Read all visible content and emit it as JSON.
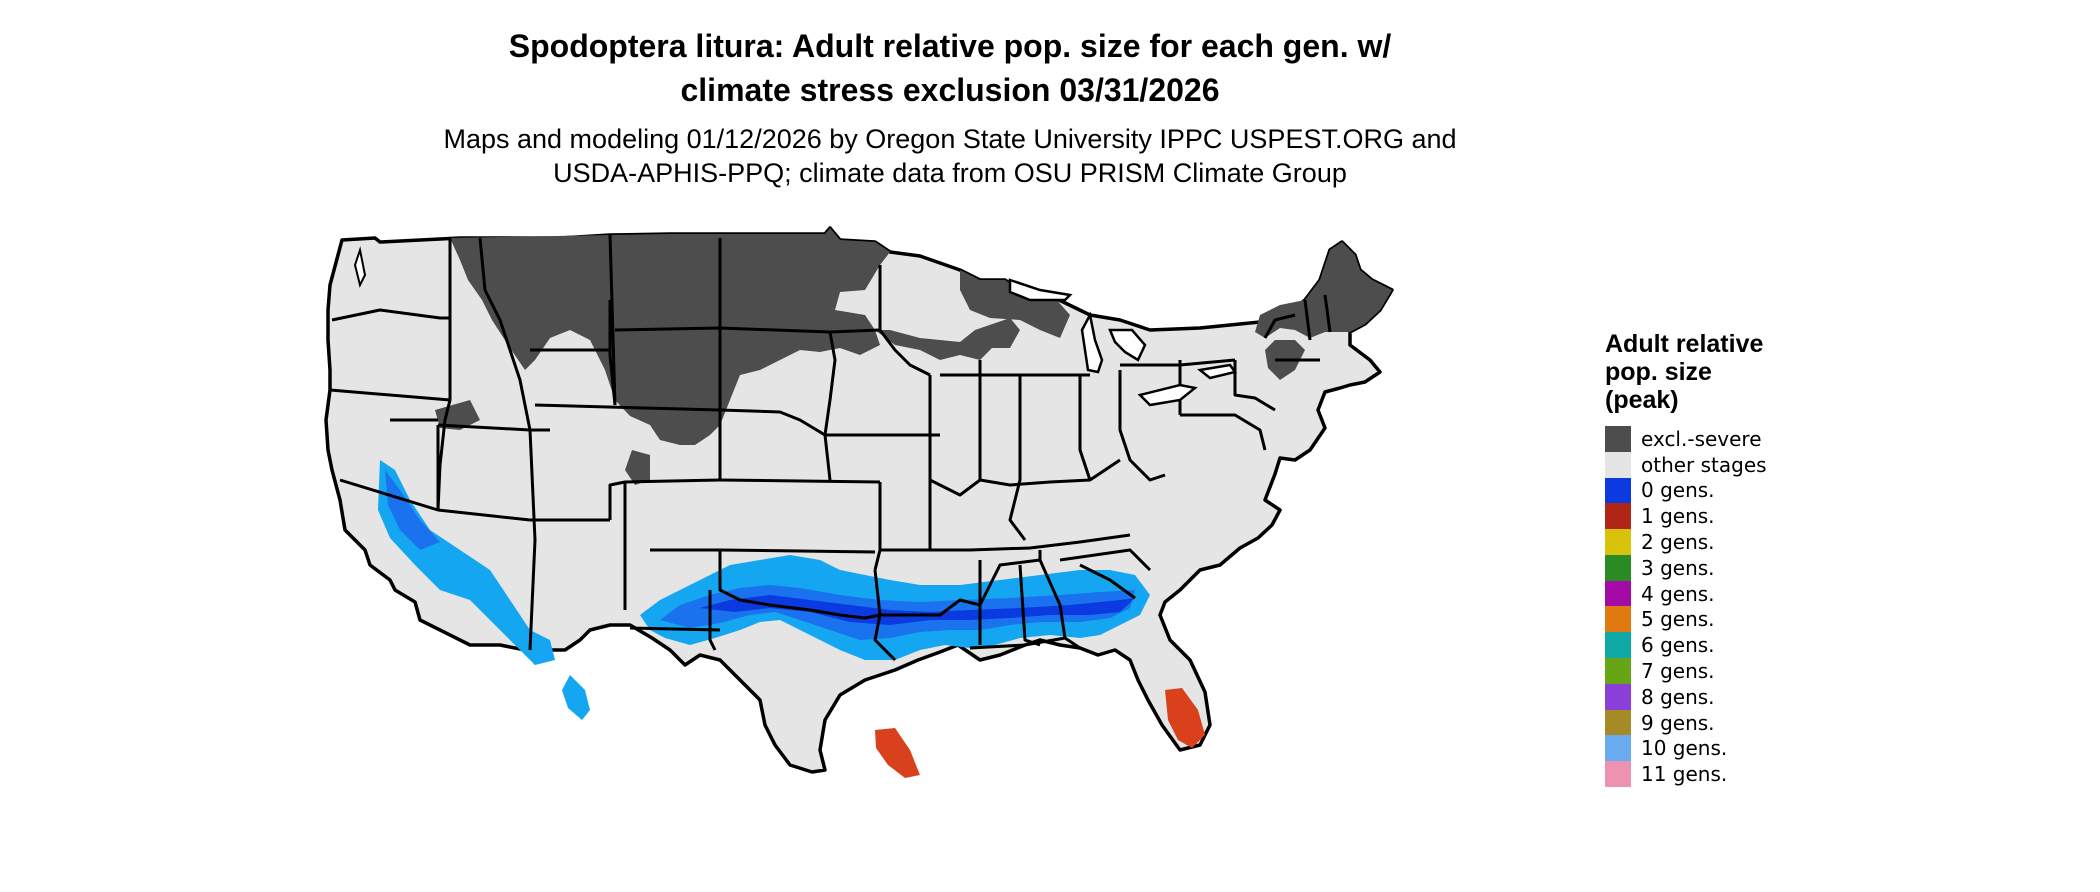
{
  "title_line1": "Spodoptera litura: Adult relative pop. size for each gen. w/",
  "title_line2": "climate stress exclusion 03/31/2026",
  "subtitle_line1": "Maps and modeling 01/12/2026 by Oregon State University IPPC USPEST.ORG and",
  "subtitle_line2": "USDA-APHIS-PPQ; climate data from OSU PRISM Climate Group",
  "legend": {
    "title_line1": "Adult relative",
    "title_line2": "pop. size",
    "title_line3": "(peak)",
    "items": [
      {
        "label": "excl.-severe",
        "color": "#4d4d4d"
      },
      {
        "label": "other stages",
        "color": "#e5e5e5"
      },
      {
        "label": "0 gens.",
        "color": "#0a3ae0"
      },
      {
        "label": "1 gens.",
        "color": "#b02616"
      },
      {
        "label": "2 gens.",
        "color": "#d8c20a"
      },
      {
        "label": "3 gens.",
        "color": "#2a8a24"
      },
      {
        "label": "4 gens.",
        "color": "#a60aa6"
      },
      {
        "label": "5 gens.",
        "color": "#e07a10"
      },
      {
        "label": "6 gens.",
        "color": "#10aaa6"
      },
      {
        "label": "7 gens.",
        "color": "#66a616"
      },
      {
        "label": "8 gens.",
        "color": "#8a40d8"
      },
      {
        "label": "9 gens.",
        "color": "#a68a26"
      },
      {
        "label": "10 gens.",
        "color": "#6aaaee"
      },
      {
        "label": "11 gens.",
        "color": "#ee92b2"
      }
    ]
  },
  "map_colors": {
    "other": "#e5e5e5",
    "excluded": "#4d4d4d",
    "zero_gen_dark": "#0a3ae0",
    "zero_gen_mid": "#1a72ee",
    "zero_gen_light": "#14a6f0",
    "one_gen": "#d9401c",
    "border": "#000000"
  }
}
